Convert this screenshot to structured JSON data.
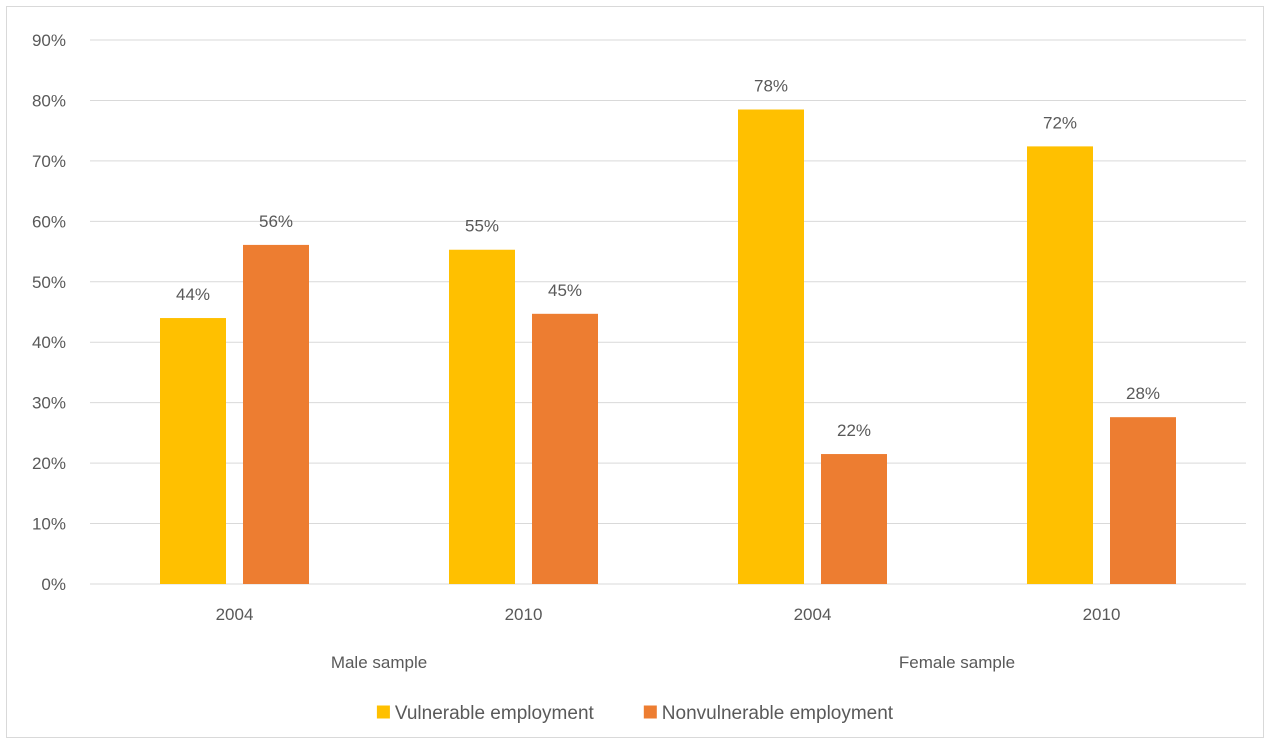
{
  "chart_data": {
    "type": "bar",
    "title": "",
    "xlabel": "",
    "ylabel": "",
    "ylim": [
      0,
      0.9
    ],
    "y_ticks": [
      0,
      0.1,
      0.2,
      0.3,
      0.4,
      0.5,
      0.6,
      0.7,
      0.8,
      0.9
    ],
    "y_tick_labels": [
      "0%",
      "10%",
      "20%",
      "30%",
      "40%",
      "50%",
      "60%",
      "70%",
      "80%",
      "90%"
    ],
    "grid": true,
    "legend_position": "bottom",
    "categories": [
      "2004",
      "2010",
      "2004",
      "2010"
    ],
    "groups": [
      {
        "label": "Male sample",
        "categories": [
          0,
          1
        ]
      },
      {
        "label": "Female sample",
        "categories": [
          2,
          3
        ]
      }
    ],
    "series": [
      {
        "name": "Vulnerable employment",
        "color": "#FFC000",
        "values": [
          0.44,
          0.553,
          0.785,
          0.724
        ],
        "labels": [
          "44%",
          "55%",
          "78%",
          "72%"
        ]
      },
      {
        "name": "Nonvulnerable employment",
        "color": "#ED7D31",
        "values": [
          0.561,
          0.447,
          0.215,
          0.276
        ],
        "labels": [
          "56%",
          "45%",
          "22%",
          "28%"
        ]
      }
    ],
    "grid_color": "#d9d9d9",
    "text_color": "#595959"
  }
}
